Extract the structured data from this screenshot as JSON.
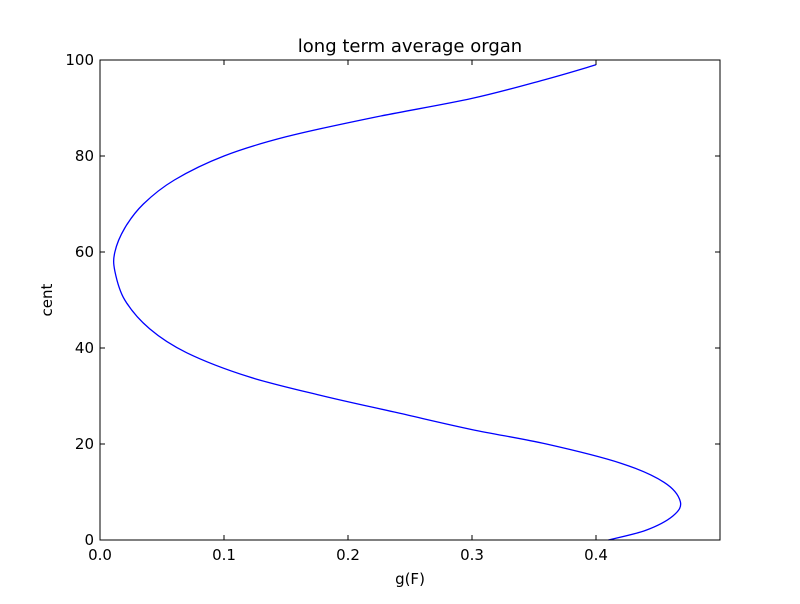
{
  "chart_data": {
    "type": "line",
    "title": "long term average organ",
    "xlabel": "g(F)",
    "ylabel": "cent",
    "xlim": [
      0.0,
      0.5
    ],
    "ylim": [
      0,
      100
    ],
    "xticks": [
      0.0,
      0.1,
      0.2,
      0.3,
      0.4
    ],
    "xtick_labels": [
      "0.0",
      "0.1",
      "0.2",
      "0.3",
      "0.4"
    ],
    "yticks": [
      0,
      20,
      40,
      60,
      80,
      100
    ],
    "ytick_labels": [
      "0",
      "20",
      "40",
      "60",
      "80",
      "100"
    ],
    "grid": false,
    "series": [
      {
        "color": "#0000ff",
        "points": [
          [
            0.41,
            0
          ],
          [
            0.44,
            2
          ],
          [
            0.462,
            5
          ],
          [
            0.468,
            8
          ],
          [
            0.455,
            12
          ],
          [
            0.42,
            16
          ],
          [
            0.36,
            20
          ],
          [
            0.3,
            23
          ],
          [
            0.24,
            26.5
          ],
          [
            0.18,
            30
          ],
          [
            0.12,
            34
          ],
          [
            0.07,
            39
          ],
          [
            0.04,
            44
          ],
          [
            0.02,
            50
          ],
          [
            0.012,
            56
          ],
          [
            0.012,
            60
          ],
          [
            0.02,
            65
          ],
          [
            0.035,
            70
          ],
          [
            0.06,
            75
          ],
          [
            0.1,
            80
          ],
          [
            0.15,
            84
          ],
          [
            0.22,
            88
          ],
          [
            0.3,
            92
          ],
          [
            0.36,
            96
          ],
          [
            0.4,
            99
          ]
        ]
      }
    ]
  }
}
